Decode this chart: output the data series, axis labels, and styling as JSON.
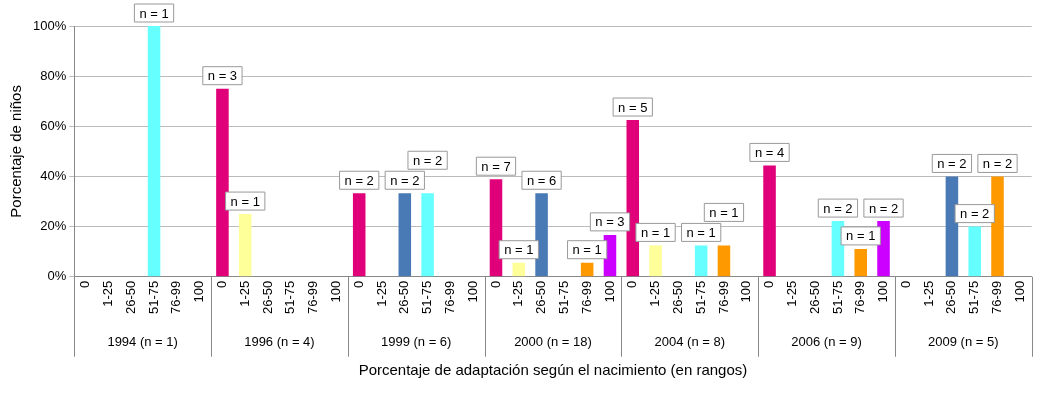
{
  "chart_data": {
    "type": "bar",
    "xlabel": "Porcentaje de adaptación según el nacimiento (en rangos)",
    "ylabel": "Porcentaje de niños",
    "categories": [
      "0",
      "1-25",
      "26-50",
      "51-75",
      "76-99",
      "100",
      "0",
      "1-25",
      "26-50",
      "51-75",
      "76-99",
      "100",
      "0",
      "1-25",
      "26-50",
      "51-75",
      "76-99",
      "100",
      "0",
      "1-25",
      "26-50",
      "51-75",
      "76-99",
      "100",
      "0",
      "1-25",
      "26-50",
      "51-75",
      "76-99",
      "100",
      "0",
      "1-25",
      "26-50",
      "51-75",
      "76-99",
      "100",
      "0",
      "1-25",
      "26-50",
      "51-75",
      "76-99",
      "100"
    ],
    "values": [
      0,
      0,
      0,
      100,
      0,
      0,
      75,
      25,
      0,
      0,
      0,
      0,
      33.3,
      0,
      33.3,
      33.3,
      0,
      0,
      38.9,
      5.6,
      33.3,
      0,
      5.6,
      16.7,
      62.5,
      12.5,
      0,
      12.5,
      12.5,
      0,
      44.4,
      0,
      0,
      22.2,
      11.1,
      22.2,
      0,
      0,
      40,
      20,
      40,
      0
    ],
    "colors": [
      "#e0007a",
      "#ffff99",
      "#4a7ab5",
      "#66ffff",
      "#ff9900",
      "#cc00ff",
      "#e0007a",
      "#ffff99",
      "#4a7ab5",
      "#66ffff",
      "#ff9900",
      "#cc00ff",
      "#e0007a",
      "#ffff99",
      "#4a7ab5",
      "#66ffff",
      "#ff9900",
      "#cc00ff",
      "#e0007a",
      "#ffff99",
      "#4a7ab5",
      "#66ffff",
      "#ff9900",
      "#cc00ff",
      "#e0007a",
      "#ffff99",
      "#4a7ab5",
      "#66ffff",
      "#ff9900",
      "#cc00ff",
      "#e0007a",
      "#ffff99",
      "#4a7ab5",
      "#66ffff",
      "#ff9900",
      "#cc00ff",
      "#e0007a",
      "#ffff99",
      "#4a7ab5",
      "#66ffff",
      "#ff9900",
      "#cc00ff"
    ],
    "annotations": [
      "1994 (n = 1)",
      "1996 (n = 4)",
      "1999 (n = 6)",
      "2000 (n = 18)",
      "2004 (n = 8)",
      "2006 (n = 9)",
      "2009 (n = 5)",
      "n = 1",
      "n = 3",
      "n = 1",
      "n = 2",
      "n = 2",
      "n = 2",
      "n = 7",
      "n = 1",
      "n = 6",
      "n = 1",
      "n = 3",
      "n = 5",
      "n = 1",
      "n = 1",
      "n = 1",
      "n = 4",
      "n = 2",
      "n = 1",
      "n = 2",
      "n = 2",
      "n = 2",
      "n = 2"
    ],
    "ylim": [
      0,
      100
    ],
    "yticks": [
      {
        "value": 0,
        "label": "0%"
      },
      {
        "value": 20,
        "label": "20%"
      },
      {
        "value": 40,
        "label": "40%"
      },
      {
        "value": 60,
        "label": "60%"
      },
      {
        "value": 80,
        "label": "80%"
      },
      {
        "value": 100,
        "label": "100%"
      }
    ],
    "grid": "y"
  }
}
